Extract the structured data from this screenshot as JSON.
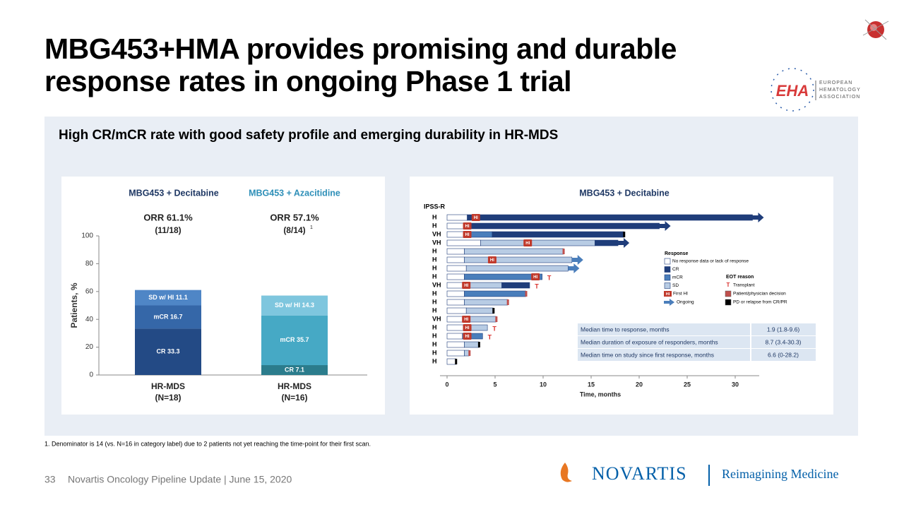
{
  "title": [
    "MBG453+HMA provides promising and durable",
    "response rates in ongoing Phase 1 trial"
  ],
  "subtitle": "High CR/mCR rate with good safety profile and emerging durability in HR-MDS",
  "logos": {
    "eha": "EHA",
    "eha_name": [
      "EUROPEAN",
      "HEMATOLOGY",
      "ASSOCIATION"
    ],
    "novartis": "NOVARTIS",
    "tagline": "Reimagining Medicine"
  },
  "chart_data": [
    {
      "type": "stacked-bar",
      "y_label": "Patients, %",
      "ylim": [
        0,
        100
      ],
      "yticks": [
        0,
        20,
        40,
        60,
        80,
        100
      ],
      "groups": [
        {
          "title": "MBG453 + Decitabine",
          "title_color": "#1f3864",
          "orr": "ORR 61.1%",
          "orr_detail": "(11/18)",
          "category": "HR-MDS",
          "n": "(N=18)",
          "segments": [
            {
              "label": "CR 33.3",
              "value": 33.3,
              "color": "#234a85"
            },
            {
              "label": "mCR 16.7",
              "value": 16.7,
              "color": "#3567a8"
            },
            {
              "label": "SD w/ HI 11.1",
              "value": 11.1,
              "color": "#4f86c6"
            }
          ]
        },
        {
          "title": "MBG453 + Azacitidine",
          "title_color": "#2e8fb8",
          "orr": "ORR 57.1%",
          "orr_detail": "(8/14)",
          "orr_note": "1",
          "category": "HR-MDS",
          "n": "(N=16)",
          "segments": [
            {
              "label": "CR 7.1",
              "value": 7.1,
              "color": "#2b7c8c"
            },
            {
              "label": "mCR 35.7",
              "value": 35.7,
              "color": "#46a9c5"
            },
            {
              "label": "SD w/ HI 14.3",
              "value": 14.3,
              "color": "#7ec6de"
            }
          ]
        }
      ]
    },
    {
      "type": "swimmer",
      "title": "MBG453 + Decitabine",
      "y_header": "IPSS-R",
      "x_label": "Time, months",
      "xlim": [
        0,
        32.5
      ],
      "xticks": [
        0,
        5,
        10,
        15,
        20,
        25,
        30
      ],
      "patients": [
        {
          "ipss": "H",
          "segments": [
            {
              "end": 2.1,
              "color": "#ffffff"
            },
            {
              "end": 31.8,
              "color": "#1f3d7a"
            }
          ],
          "ongoing": true,
          "hi": {
            "label": "HI",
            "at": 3.0
          }
        },
        {
          "ipss": "H",
          "segments": [
            {
              "end": 2.0,
              "color": "#ffffff"
            },
            {
              "end": 22.1,
              "color": "#1f3d7a"
            }
          ],
          "ongoing": true,
          "hi": {
            "label": "HI",
            "at": 2.1
          }
        },
        {
          "ipss": "VH",
          "segments": [
            {
              "end": 2.0,
              "color": "#ffffff"
            },
            {
              "end": 4.7,
              "color": "#4a7ebb"
            },
            {
              "end": 18.4,
              "color": "#1f3d7a"
            }
          ],
          "end_block": "#000000",
          "hi": {
            "label": "HI",
            "at": 2.1
          }
        },
        {
          "ipss": "VH",
          "segments": [
            {
              "end": 3.5,
              "color": "#ffffff"
            },
            {
              "end": 15.4,
              "color": "#b8cce4"
            },
            {
              "end": 17.8,
              "color": "#1f3d7a"
            }
          ],
          "ongoing": true,
          "hi": {
            "label": "HI",
            "at": 8.4
          }
        },
        {
          "ipss": "H",
          "segments": [
            {
              "end": 1.8,
              "color": "#ffffff"
            },
            {
              "end": 12.1,
              "color": "#b8cce4"
            }
          ],
          "end_block": "#c0504d"
        },
        {
          "ipss": "H",
          "segments": [
            {
              "end": 1.8,
              "color": "#ffffff"
            },
            {
              "end": 13.0,
              "color": "#b8cce4"
            }
          ],
          "ongoing": true,
          "hi": {
            "label": "HI",
            "at": 4.7
          }
        },
        {
          "ipss": "H",
          "segments": [
            {
              "end": 2.0,
              "color": "#ffffff"
            },
            {
              "end": 12.6,
              "color": "#b8cce4"
            }
          ],
          "ongoing": true
        },
        {
          "ipss": "H",
          "segments": [
            {
              "end": 1.8,
              "color": "#ffffff"
            },
            {
              "end": 9.9,
              "color": "#4a7ebb"
            }
          ],
          "transplant": "T",
          "hi": {
            "label": "HI",
            "at": 9.2
          }
        },
        {
          "ipss": "VH",
          "segments": [
            {
              "end": 1.8,
              "color": "#ffffff"
            },
            {
              "end": 5.7,
              "color": "#b8cce4"
            },
            {
              "end": 8.6,
              "color": "#1f3d7a"
            }
          ],
          "transplant": "T",
          "hi": {
            "label": "HI",
            "at": 2.0
          }
        },
        {
          "ipss": "H",
          "segments": [
            {
              "end": 1.8,
              "color": "#ffffff"
            },
            {
              "end": 8.2,
              "color": "#4a7ebb"
            }
          ],
          "end_block": "#c0504d"
        },
        {
          "ipss": "H",
          "segments": [
            {
              "end": 1.8,
              "color": "#ffffff"
            },
            {
              "end": 6.3,
              "color": "#b8cce4"
            }
          ],
          "end_block": "#c0504d"
        },
        {
          "ipss": "H",
          "segments": [
            {
              "end": 2.0,
              "color": "#ffffff"
            },
            {
              "end": 4.8,
              "color": "#b8cce4"
            }
          ],
          "end_block": "#000000"
        },
        {
          "ipss": "VH",
          "segments": [
            {
              "end": 1.6,
              "color": "#ffffff"
            },
            {
              "end": 5.1,
              "color": "#b8cce4"
            }
          ],
          "end_block": "#c0504d",
          "hi": {
            "label": "HI",
            "at": 2.0
          }
        },
        {
          "ipss": "H",
          "segments": [
            {
              "end": 1.7,
              "color": "#ffffff"
            },
            {
              "end": 4.2,
              "color": "#b8cce4"
            }
          ],
          "transplant": "T",
          "hi": {
            "label": "HI",
            "at": 2.1
          }
        },
        {
          "ipss": "H",
          "segments": [
            {
              "end": 1.6,
              "color": "#ffffff"
            },
            {
              "end": 3.7,
              "color": "#4a7ebb"
            }
          ],
          "transplant": "T",
          "hi": {
            "label": "HI",
            "at": 2.1
          }
        },
        {
          "ipss": "H",
          "segments": [
            {
              "end": 1.8,
              "color": "#ffffff"
            },
            {
              "end": 3.3,
              "color": "#b8cce4"
            }
          ],
          "end_block": "#000000"
        },
        {
          "ipss": "H",
          "segments": [
            {
              "end": 1.8,
              "color": "#ffffff"
            },
            {
              "end": 2.3,
              "color": "#b8cce4"
            }
          ],
          "end_block": "#c0504d"
        },
        {
          "ipss": "H",
          "segments": [
            {
              "end": 0.9,
              "color": "#ffffff"
            }
          ],
          "end_block": "#000000"
        }
      ],
      "response_legend": {
        "title": "Response",
        "items": [
          {
            "label": "No response data or lack of response",
            "color": "#ffffff"
          },
          {
            "label": "CR",
            "color": "#1f3d7a"
          },
          {
            "label": "mCR",
            "color": "#4a7ebb"
          },
          {
            "label": "SD",
            "color": "#b8cce4"
          }
        ]
      },
      "marker_legend": [
        {
          "label": "First HI",
          "symbol": "HI"
        },
        {
          "label": "Ongoing",
          "color": "#4a7ebb"
        }
      ],
      "eot_legend": {
        "title": "EOT reason",
        "items": [
          {
            "label": "Transplant",
            "symbol": "T"
          },
          {
            "label": "Patient/physician decision",
            "color": "#c0504d"
          },
          {
            "label": "PD or relapse from CR/PR",
            "color": "#000000"
          }
        ]
      },
      "summary": [
        [
          "Median time to response, months",
          "1.9 (1.8-9.6)"
        ],
        [
          "Median duration of exposure of responders, months",
          "8.7 (3.4-30.3)"
        ],
        [
          "Median time on study since first response, months",
          "6.6 (0-28.2)"
        ]
      ]
    }
  ],
  "footnote": "1. Denominator is 14 (vs. N=16 in category label) due to 2 patients not yet reaching the time-point for their first scan.",
  "footer": {
    "page": "33",
    "text": "Novartis Oncology Pipeline Update | June 15, 2020"
  }
}
